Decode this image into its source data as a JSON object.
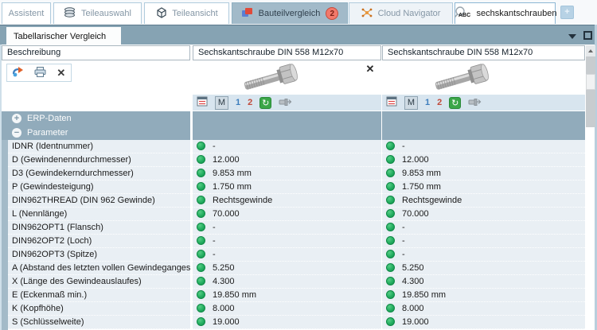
{
  "tabs": [
    {
      "label": "Assistent"
    },
    {
      "label": "Teileauswahl",
      "icon": "stack-icon"
    },
    {
      "label": "Teileansicht",
      "icon": "cube-icon"
    },
    {
      "label": "Bauteilvergleich",
      "icon": "compare-icon",
      "badge": "2",
      "state": "active"
    },
    {
      "label": "Cloud Navigator",
      "icon": "network-icon"
    },
    {
      "label": "sechskantschrauben",
      "icon": "search-abc-icon"
    }
  ],
  "new_tab_button": "+",
  "panel": {
    "tab_label": "Tabellarischer Vergleich"
  },
  "icons": {
    "close": "✕",
    "expand": "+",
    "collapse": "−",
    "sync": "↻",
    "abc": "ABC"
  },
  "table": {
    "description_header": "Beschreibung",
    "columns": [
      {
        "title": "Sechskantschraube DIN 558 M12x70"
      },
      {
        "title": "Sechskantschraube DIN 558 M12x70"
      }
    ],
    "column_toolbar": {
      "m": "M",
      "one": "1",
      "two": "2"
    },
    "sections": [
      {
        "label": "ERP-Daten",
        "icon": "+",
        "state": "collapsed"
      },
      {
        "label": "Parameter",
        "icon": "−",
        "state": "expanded"
      }
    ],
    "rows": [
      {
        "label": "IDNR (Identnummer)",
        "values": [
          "-",
          "-"
        ]
      },
      {
        "label": "D (Gewindenenndurchmesser)",
        "values": [
          "12.000",
          "12.000"
        ]
      },
      {
        "label": "D3 (Gewindekerndurchmesser)",
        "values": [
          "9.853 mm",
          "9.853 mm"
        ]
      },
      {
        "label": "P (Gewindesteigung)",
        "values": [
          "1.750 mm",
          "1.750 mm"
        ]
      },
      {
        "label": "DIN962THREAD (DIN 962 Gewinde)",
        "values": [
          "Rechtsgewinde",
          "Rechtsgewinde"
        ]
      },
      {
        "label": "L (Nennlänge)",
        "values": [
          "70.000",
          "70.000"
        ]
      },
      {
        "label": "DIN962OPT1 (Flansch)",
        "values": [
          "-",
          "-"
        ]
      },
      {
        "label": "DIN962OPT2 (Loch)",
        "values": [
          "-",
          "-"
        ]
      },
      {
        "label": "DIN962OPT3 (Spitze)",
        "values": [
          "-",
          "-"
        ]
      },
      {
        "label": "A (Abstand des letzten vollen Gewindeganges vo...",
        "values": [
          "5.250",
          "5.250"
        ]
      },
      {
        "label": "X (Länge des Gewindeauslaufes)",
        "values": [
          "4.300",
          "4.300"
        ]
      },
      {
        "label": "E (Eckenmaß  min.)",
        "values": [
          "19.850 mm",
          "19.850 mm"
        ]
      },
      {
        "label": "K (Kopfhöhe)",
        "values": [
          "8.000",
          "8.000"
        ]
      },
      {
        "label": "S (Schlüsselweite)",
        "values": [
          "19.000",
          "19.000"
        ]
      }
    ]
  }
}
